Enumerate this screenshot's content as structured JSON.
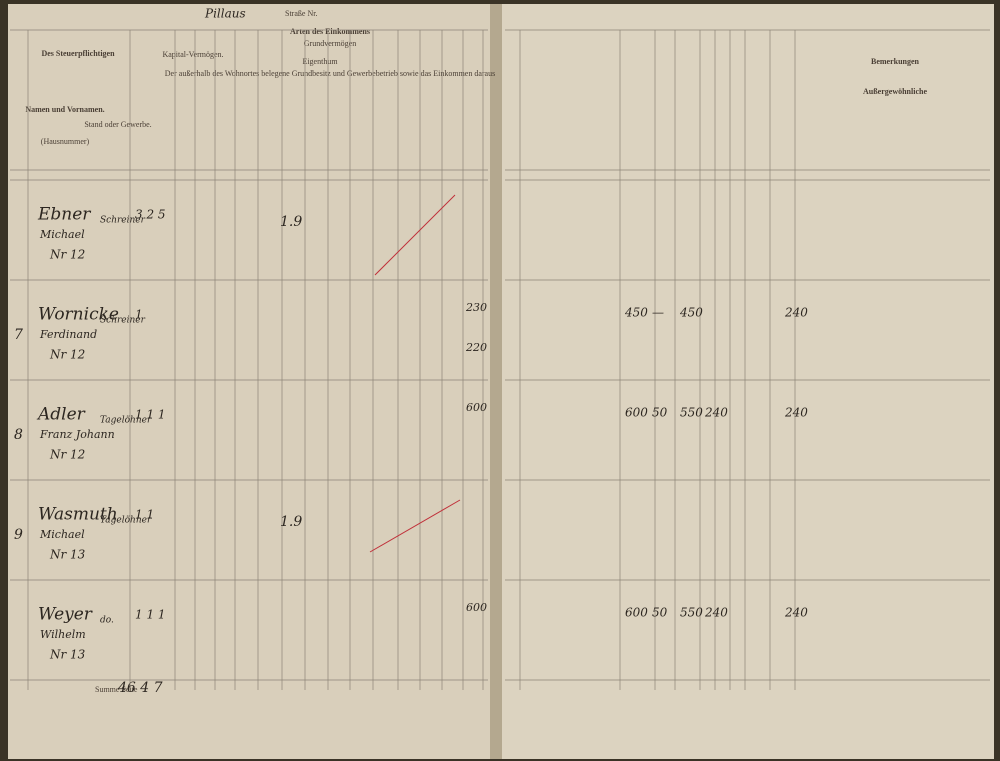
{
  "header": {
    "street_name": "Pillaus",
    "street_label": "Straße Nr.",
    "title": "Arten des Einkommens",
    "subtitle": "Grundvermögen",
    "subheading": "Eigenthum",
    "left_col": "Des Steuerpflichtigen",
    "name_col": "Namen und Vornamen.",
    "name_sub": "(Hausnummer)",
    "stand_col": "Stand oder Gewerbe.",
    "capital_col": "Kapital-Vermögen.",
    "note": "Der außerhalb des Wohnortes belegene Grundbesitz und Gewerbebetrieb sowie das Einkommen daraus",
    "remarks": "Bemerkungen",
    "extra": "Außergewöhnliche"
  },
  "rows": [
    {
      "name": "Ebner",
      "given": "Michael",
      "house": "Nr 12",
      "stand": "Schreiner",
      "counts": "3 2 5",
      "mark": "1.9"
    },
    {
      "number": "7",
      "name": "Wornicke",
      "given": "Ferdinand",
      "house": "Nr 12",
      "stand": "Schreiner",
      "counts": "1",
      "left_value": "230",
      "left_value2": "220",
      "gross": "450",
      "deduction": "—",
      "net": "450",
      "total": "240"
    },
    {
      "number": "8",
      "name": "Adler",
      "given": "Franz Johann",
      "house": "Nr 12",
      "stand": "Tagelöhner",
      "counts": "1 1 1",
      "left_value": "600",
      "gross": "600",
      "deduction": "50",
      "net": "550",
      "tax": "240",
      "total": "240"
    },
    {
      "number": "9",
      "name": "Wasmuth",
      "given": "Michael",
      "house": "Nr 13",
      "stand": "Tagelöhner",
      "counts": "1 1",
      "mark": "1.9"
    },
    {
      "name": "Weyer",
      "given": "Wilhelm",
      "house": "Nr 13",
      "stand": "do.",
      "counts": "1 1 1",
      "left_value": "600",
      "gross": "600",
      "deduction": "50",
      "net": "550",
      "tax": "240",
      "total": "240"
    }
  ],
  "footer": {
    "label": "Summe Seite",
    "value": "46 4 7"
  }
}
